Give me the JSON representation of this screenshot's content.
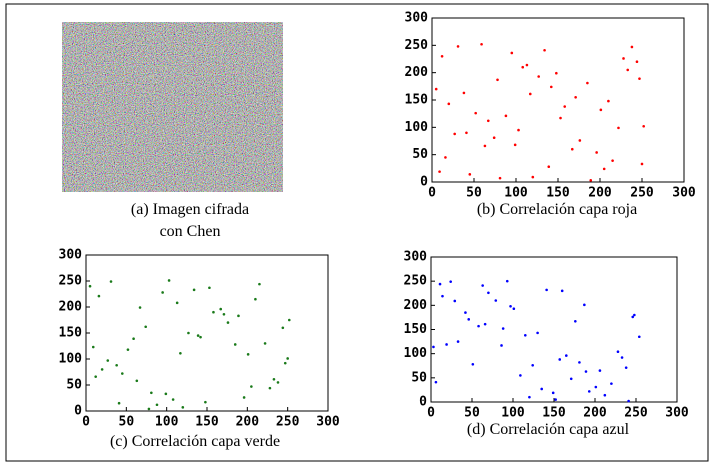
{
  "panel_a": {
    "caption": [
      "(a) Imagen cifrada",
      "con Chen"
    ]
  },
  "chart_data": [
    {
      "type": "scatter",
      "caption": "(b) Correlación capa roja",
      "color": "#ff0000",
      "x": [
        12,
        45,
        78,
        103,
        134,
        167,
        201,
        233,
        250,
        5,
        27,
        59,
        88,
        120,
        148,
        176,
        210,
        244,
        16,
        67,
        95,
        139,
        185,
        222,
        38,
        81,
        113,
        158,
        196,
        238,
        9,
        52,
        99,
        127,
        171,
        215,
        252,
        31,
        74,
        142,
        189,
        228,
        20,
        63,
        108,
        153,
        205,
        247,
        41,
        117
      ],
      "y": [
        230,
        14,
        187,
        95,
        241,
        60,
        132,
        205,
        33,
        170,
        88,
        252,
        121,
        9,
        199,
        76,
        148,
        220,
        45,
        112,
        236,
        28,
        181,
        99,
        163,
        7,
        214,
        138,
        54,
        247,
        19,
        126,
        68,
        193,
        155,
        39,
        102,
        248,
        81,
        174,
        3,
        226,
        143,
        66,
        210,
        117,
        24,
        189,
        90,
        161
      ],
      "xlim": [
        0,
        300
      ],
      "ylim": [
        0,
        300
      ],
      "xticks": [
        0,
        50,
        100,
        150,
        200,
        250,
        300
      ],
      "yticks": [
        0,
        50,
        100,
        150,
        200,
        250,
        300
      ]
    },
    {
      "type": "scatter",
      "caption": "(c) Correlación capa verde",
      "color": "#1a7a1a",
      "x": [
        233,
        5,
        148,
        67,
        185,
        38,
        252,
        99,
        16,
        201,
        127,
        78,
        215,
        45,
        171,
        9,
        238,
        113,
        59,
        196,
        134,
        27,
        244,
        88,
        158,
        20,
        103,
        228,
        52,
        176,
        12,
        210,
        81,
        142,
        250,
        31,
        120,
        189,
        63,
        222,
        95,
        247,
        41,
        167,
        74,
        205,
        117,
        153,
        108,
        139
      ],
      "y": [
        61,
        240,
        17,
        199,
        128,
        88,
        175,
        33,
        221,
        109,
        150,
        4,
        244,
        72,
        186,
        123,
        55,
        208,
        139,
        26,
        233,
        97,
        160,
        12,
        190,
        80,
        251,
        44,
        118,
        170,
        66,
        215,
        35,
        142,
        101,
        249,
        7,
        183,
        58,
        130,
        228,
        92,
        15,
        196,
        162,
        47,
        111,
        237,
        22,
        145
      ],
      "xlim": [
        0,
        300
      ],
      "ylim": [
        0,
        300
      ],
      "xticks": [
        0,
        50,
        100,
        150,
        200,
        250,
        300
      ],
      "yticks": [
        0,
        50,
        100,
        150,
        200,
        250,
        300
      ]
    },
    {
      "type": "scatter",
      "caption": "(d) Correlación capa azul",
      "color": "#0000ff",
      "x": [
        88,
        201,
        14,
        157,
        246,
        63,
        120,
        33,
        189,
        97,
        228,
        6,
        141,
        176,
        51,
        212,
        79,
        254,
        109,
        24,
        165,
        42,
        193,
        130,
        70,
        238,
        3,
        152,
        101,
        220,
        58,
        181,
        11,
        135,
        248,
        86,
        206,
        29,
        171,
        115,
        46,
        233,
        93,
        149,
        19,
        187,
        124,
        66,
        241,
        160
      ],
      "y": [
        152,
        31,
        219,
        88,
        176,
        241,
        10,
        125,
        63,
        198,
        104,
        41,
        232,
        167,
        78,
        14,
        210,
        135,
        55,
        249,
        96,
        185,
        22,
        143,
        226,
        71,
        114,
        5,
        193,
        38,
        157,
        82,
        244,
        27,
        180,
        117,
        65,
        209,
        48,
        138,
        171,
        92,
        250,
        19,
        119,
        201,
        76,
        161,
        2,
        230
      ],
      "xlim": [
        0,
        300
      ],
      "ylim": [
        0,
        300
      ],
      "xticks": [
        0,
        50,
        100,
        150,
        200,
        250,
        300
      ],
      "yticks": [
        0,
        50,
        100,
        150,
        200,
        250,
        300
      ]
    }
  ]
}
